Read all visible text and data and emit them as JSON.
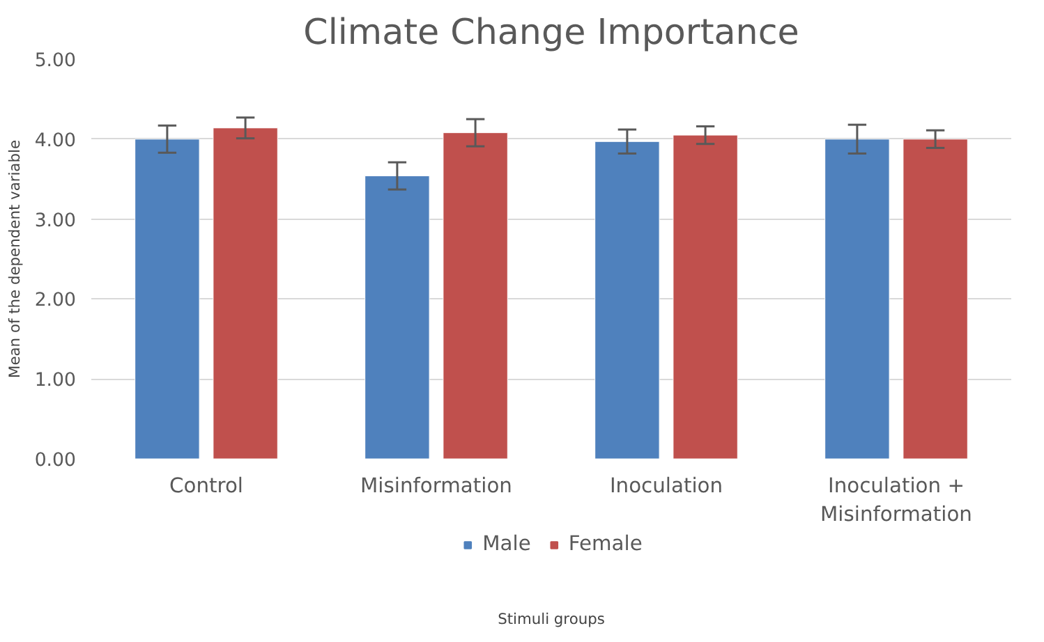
{
  "chart_data": {
    "type": "bar",
    "title": "Climate Change Importance",
    "annotations": [
      "Stimuli groups"
    ],
    "ylabel": "Mean of the dependent variable",
    "categories": [
      "Control",
      "Misinformation",
      "Inoculation",
      "Inoculation +\nMisinformation"
    ],
    "series": [
      {
        "name": "Male",
        "color": "#4f81bd",
        "values": [
          4.0,
          3.54,
          3.97,
          4.0
        ],
        "errors": [
          0.17,
          0.17,
          0.15,
          0.18
        ]
      },
      {
        "name": "Female",
        "color": "#c0504d",
        "values": [
          4.14,
          4.08,
          4.05,
          4.0
        ],
        "errors": [
          0.13,
          0.17,
          0.11,
          0.11
        ]
      }
    ],
    "ylim": [
      0,
      5
    ],
    "yticks": [
      {
        "value": 0,
        "label": "0.00"
      },
      {
        "value": 1,
        "label": "1.00"
      },
      {
        "value": 2,
        "label": "2.00"
      },
      {
        "value": 3,
        "label": "3.00"
      },
      {
        "value": 4,
        "label": "4.00"
      },
      {
        "value": 5,
        "label": "5.00"
      }
    ],
    "grid": "y",
    "legend": "bottom"
  }
}
